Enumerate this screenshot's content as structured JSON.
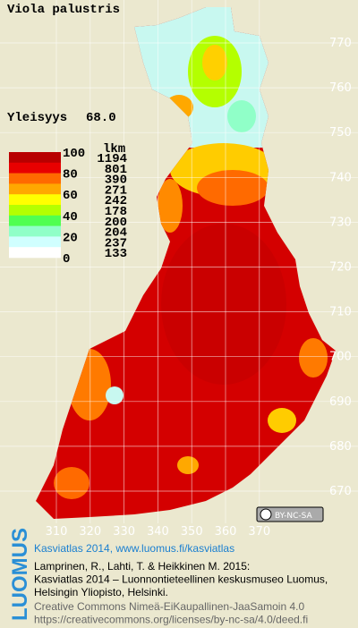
{
  "header": {
    "title": "Viola palustris",
    "prevalence_label": "Yleisyys",
    "prevalence_value": "68.0"
  },
  "legend": {
    "count_header": "lkm",
    "scale_labels": [
      "100",
      "80",
      "60",
      "40",
      "20",
      "0"
    ],
    "bands": [
      {
        "color": "#b80000",
        "count": "1194"
      },
      {
        "color": "#e80000",
        "count": "801"
      },
      {
        "color": "#ff6a00",
        "count": "390"
      },
      {
        "color": "#ffa800",
        "count": "271"
      },
      {
        "color": "#ffff00",
        "count": "242"
      },
      {
        "color": "#b4ff00",
        "count": "178"
      },
      {
        "color": "#50ff50",
        "count": "200"
      },
      {
        "color": "#90ffc8",
        "count": "204"
      },
      {
        "color": "#d0ffff",
        "count": "237"
      },
      {
        "color": "#ffffff",
        "count": "133"
      }
    ]
  },
  "map": {
    "xticks": [
      310,
      320,
      330,
      340,
      350,
      360,
      370
    ],
    "yticks": [
      770,
      760,
      750,
      740,
      730,
      720,
      710,
      700,
      690,
      680,
      670
    ],
    "license_badge": "BY-NC-SA"
  },
  "footer": {
    "brand": "LUOMUS",
    "headline": "Kasviatlas 2014, www.luomus.fi/kasviatlas",
    "citation": [
      "Lamprinen, R., Lahti, T. & Heikkinen M. 2015:",
      "Kasviatlas 2014 – Luonnontieteellinen keskusmuseo Luomus,",
      "Helsingin Yliopisto, Helsinki."
    ],
    "license": [
      "Creative Commons Nimeä-EiKaupallinen-JaaSamoin 4.0",
      "https://creativecommons.org/licenses/by-nc-sa/4.0/deed.fi"
    ]
  }
}
